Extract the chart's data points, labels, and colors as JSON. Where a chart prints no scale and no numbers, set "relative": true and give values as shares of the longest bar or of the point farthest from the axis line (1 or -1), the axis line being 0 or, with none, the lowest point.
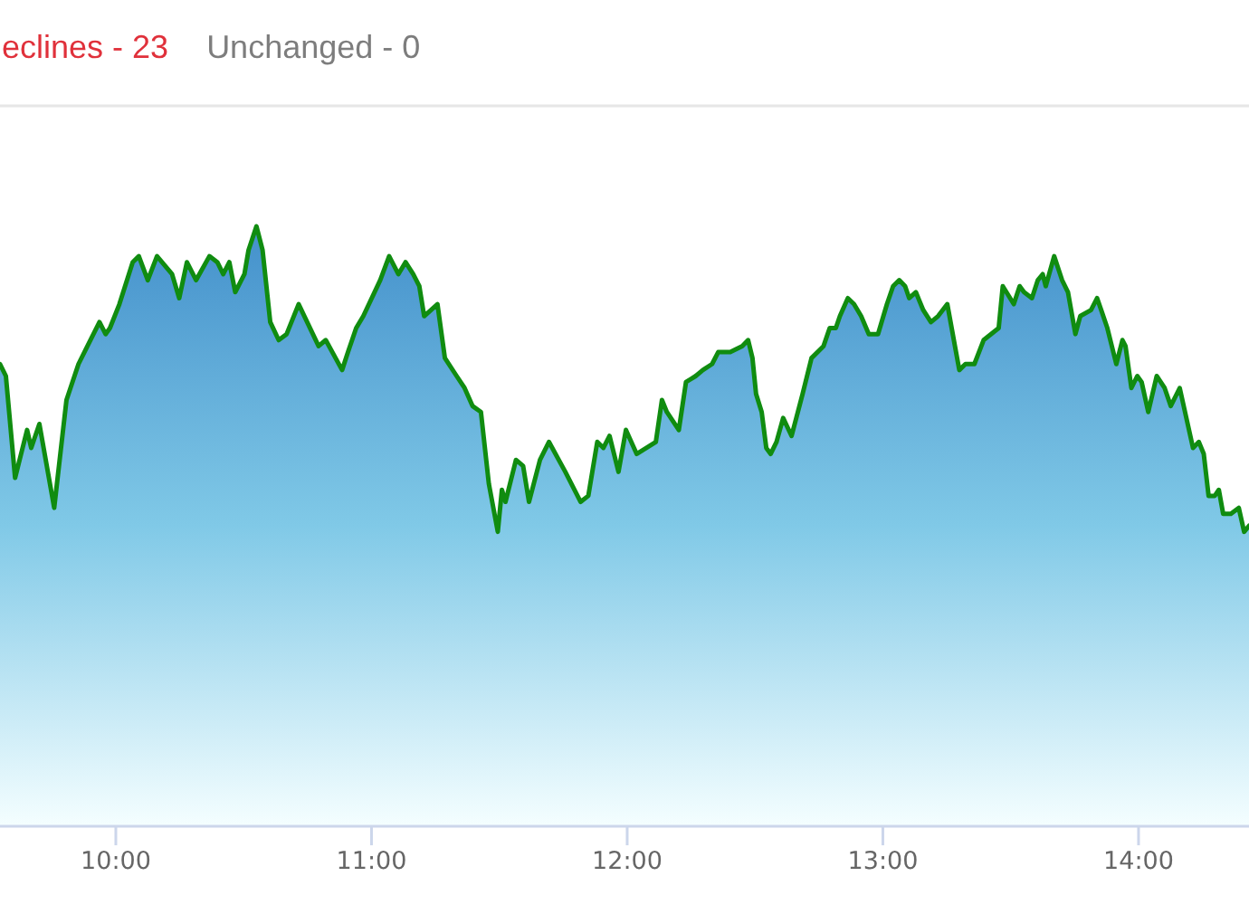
{
  "chart_data": {
    "type": "area",
    "relative": true,
    "annotations": [
      "eclines - 23",
      "Unchanged - 0"
    ],
    "x": [
      9.547,
      9.57,
      9.606,
      9.653,
      9.669,
      9.701,
      9.759,
      9.807,
      9.854,
      9.889,
      9.936,
      9.96,
      9.977,
      10.014,
      10.066,
      10.09,
      10.125,
      10.161,
      10.22,
      10.248,
      10.278,
      10.314,
      10.366,
      10.397,
      10.42,
      10.444,
      10.467,
      10.503,
      10.519,
      10.55,
      10.574,
      10.604,
      10.637,
      10.668,
      10.715,
      10.793,
      10.821,
      10.885,
      10.908,
      10.94,
      10.968,
      11.034,
      11.069,
      11.105,
      11.133,
      11.163,
      11.187,
      11.206,
      11.258,
      11.287,
      11.333,
      11.364,
      11.395,
      11.428,
      11.459,
      11.494,
      11.51,
      11.524,
      11.565,
      11.593,
      11.616,
      11.659,
      11.694,
      11.758,
      11.818,
      11.848,
      11.883,
      11.907,
      11.931,
      11.966,
      11.995,
      12.037,
      12.112,
      12.136,
      12.155,
      12.202,
      12.23,
      12.268,
      12.296,
      12.332,
      12.356,
      12.403,
      12.45,
      12.473,
      12.49,
      12.504,
      12.526,
      12.544,
      12.561,
      12.584,
      12.61,
      12.643,
      12.686,
      12.721,
      12.768,
      12.792,
      12.816,
      12.832,
      12.863,
      12.887,
      12.915,
      12.945,
      12.981,
      13.016,
      13.04,
      13.064,
      13.087,
      13.103,
      13.129,
      13.158,
      13.188,
      13.216,
      13.252,
      13.299,
      13.323,
      13.358,
      13.394,
      13.453,
      13.469,
      13.512,
      13.535,
      13.552,
      13.583,
      13.606,
      13.625,
      13.637,
      13.67,
      13.701,
      13.724,
      13.753,
      13.772,
      13.814,
      13.838,
      13.854,
      13.878,
      13.913,
      13.937,
      13.949,
      13.972,
      13.995,
      14.012,
      14.038,
      14.071,
      14.102,
      14.126,
      14.161,
      14.213,
      14.236,
      14.255,
      14.274,
      14.298,
      14.314,
      14.331,
      14.361,
      14.392,
      14.413,
      14.432
    ],
    "values": [
      0.77,
      0.75,
      0.58,
      0.66,
      0.63,
      0.67,
      0.53,
      0.71,
      0.77,
      0.8,
      0.84,
      0.82,
      0.83,
      0.87,
      0.94,
      0.95,
      0.91,
      0.95,
      0.92,
      0.88,
      0.94,
      0.91,
      0.95,
      0.94,
      0.92,
      0.94,
      0.89,
      0.92,
      0.96,
      1.0,
      0.96,
      0.84,
      0.81,
      0.82,
      0.87,
      0.8,
      0.81,
      0.76,
      0.79,
      0.83,
      0.85,
      0.91,
      0.95,
      0.92,
      0.94,
      0.92,
      0.9,
      0.85,
      0.87,
      0.78,
      0.75,
      0.73,
      0.7,
      0.69,
      0.57,
      0.49,
      0.56,
      0.54,
      0.61,
      0.6,
      0.54,
      0.61,
      0.64,
      0.59,
      0.54,
      0.55,
      0.64,
      0.63,
      0.65,
      0.59,
      0.66,
      0.62,
      0.64,
      0.71,
      0.69,
      0.66,
      0.74,
      0.75,
      0.76,
      0.77,
      0.79,
      0.79,
      0.8,
      0.81,
      0.78,
      0.72,
      0.69,
      0.63,
      0.62,
      0.64,
      0.68,
      0.65,
      0.72,
      0.78,
      0.8,
      0.83,
      0.83,
      0.85,
      0.88,
      0.87,
      0.85,
      0.82,
      0.82,
      0.87,
      0.9,
      0.91,
      0.9,
      0.88,
      0.89,
      0.86,
      0.84,
      0.85,
      0.87,
      0.76,
      0.77,
      0.77,
      0.81,
      0.83,
      0.9,
      0.87,
      0.9,
      0.89,
      0.88,
      0.91,
      0.92,
      0.9,
      0.95,
      0.91,
      0.89,
      0.82,
      0.85,
      0.86,
      0.88,
      0.86,
      0.83,
      0.77,
      0.81,
      0.8,
      0.73,
      0.75,
      0.74,
      0.69,
      0.75,
      0.73,
      0.7,
      0.73,
      0.63,
      0.64,
      0.62,
      0.55,
      0.55,
      0.56,
      0.52,
      0.52,
      0.53,
      0.49,
      0.5
    ],
    "color": "#108c10",
    "xlim": [
      9.547,
      14.432
    ],
    "xticks": [
      {
        "value": 10,
        "label": "10:00"
      },
      {
        "value": 11,
        "label": "11:00"
      },
      {
        "value": 12,
        "label": "12:00"
      },
      {
        "value": 13,
        "label": "13:00"
      },
      {
        "value": 14,
        "label": "14:00"
      }
    ]
  }
}
